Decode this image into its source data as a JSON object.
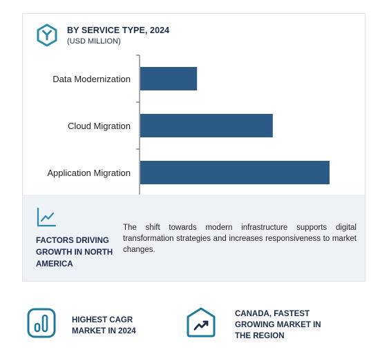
{
  "header": {
    "title": "BY SERVICE TYPE, 2024",
    "subtitle": "(USD MILLION)",
    "icon": "hexagon-y-icon"
  },
  "chart_data": {
    "type": "bar",
    "orientation": "horizontal",
    "title": "BY SERVICE TYPE, 2024",
    "subtitle": "(USD MILLION)",
    "categories": [
      "Data Modernization",
      "Cloud Migration",
      "Application Migration"
    ],
    "values": [
      30,
      70,
      100
    ],
    "bar_color": "#2b5a86",
    "value_axis_labeled": false,
    "grid": false
  },
  "insight": {
    "icon": "trend-line-icon",
    "heading": "FACTORS DRIVING GROWTH IN NORTH AMERICA",
    "text": "The shift towards modern infrastructure supports digital transformation strategies and increases responsiveness to market changes."
  },
  "footer": {
    "left": {
      "icon": "bar-chart-icon",
      "text": "HIGHEST CAGR MARKET IN 2024"
    },
    "right": {
      "icon": "trend-up-icon",
      "text": "CANADA, FASTEST GROWING MARKET IN THE REGION"
    }
  },
  "colors": {
    "accent": "#2b5a86",
    "icon_teal": "#2a8ca8",
    "navy_text": "#1c2b4a",
    "panel_bg": "#eef1f6"
  }
}
